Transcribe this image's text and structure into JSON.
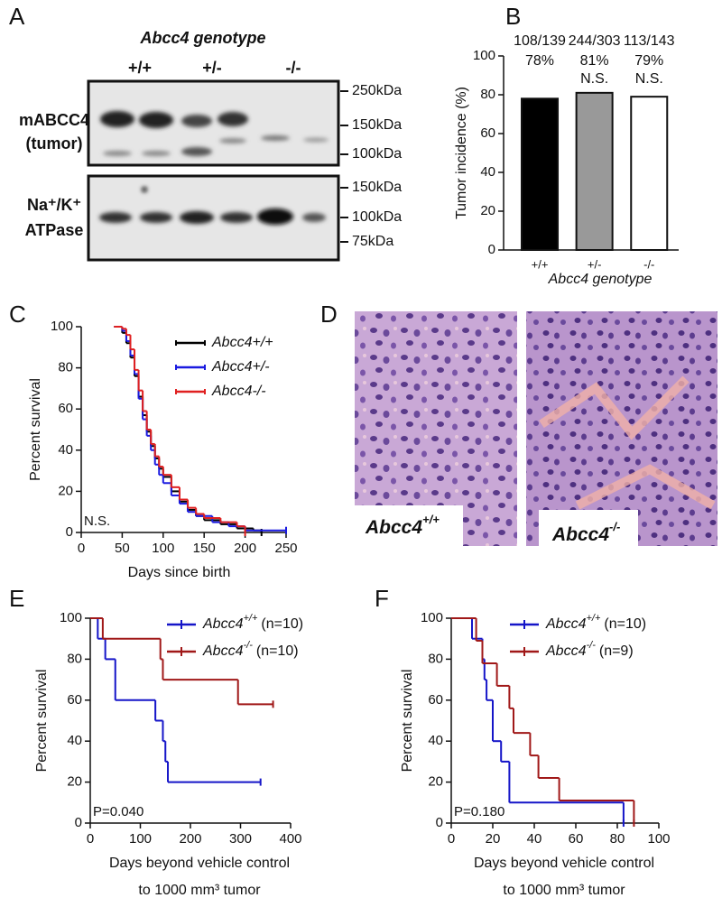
{
  "blot": {
    "panel": "A",
    "title": "Abcc4 genotype",
    "genotypes": [
      "+/+",
      "+/-",
      "-/-"
    ],
    "row_labels": [
      [
        "mABCC4",
        "(tumor)"
      ],
      [
        "Na⁺/K⁺",
        "ATPase"
      ]
    ],
    "markers_top": [
      "250kDa",
      "150kDa",
      "100kDa"
    ],
    "markers_bottom": [
      "150kDa",
      "100kDa",
      "75kDa"
    ]
  },
  "histology": {
    "panel": "D",
    "labels": [
      {
        "gene": "Abcc4",
        "genotype": "+/+"
      },
      {
        "gene": "Abcc4",
        "genotype": "-/-"
      }
    ]
  },
  "chart_data": [
    {
      "type": "bar",
      "panel": "B",
      "categories": [
        "+/+",
        "+/-",
        "-/-"
      ],
      "values": [
        78,
        81,
        79
      ],
      "value_labels": [
        "78%",
        "81%",
        "79%"
      ],
      "fractions": [
        "108/139",
        "244/303",
        "113/143"
      ],
      "significance": [
        null,
        "N.S.",
        "N.S."
      ],
      "colors": [
        "#000000",
        "#999999",
        "#ffffff"
      ],
      "ylabel": "Tumor incidence (%)",
      "xlabel": "Abcc4 genotype",
      "ylim": [
        0,
        100
      ],
      "yticks": [
        0,
        20,
        40,
        60,
        80,
        100
      ]
    },
    {
      "type": "line",
      "step": true,
      "panel": "C",
      "xlabel": [
        "Days since birth"
      ],
      "ylabel": "Percent survival",
      "annotation": "N.S.",
      "xlim": [
        0,
        250
      ],
      "xticks": [
        0,
        50,
        100,
        150,
        200,
        250
      ],
      "ylim": [
        0,
        100
      ],
      "yticks": [
        0,
        20,
        40,
        60,
        80,
        100
      ],
      "series": [
        {
          "name": "Abcc4+/+",
          "color": "#000000",
          "x": [
            40,
            50,
            55,
            60,
            65,
            70,
            75,
            80,
            85,
            90,
            95,
            100,
            110,
            120,
            130,
            140,
            150,
            170,
            190,
            210,
            220
          ],
          "values": [
            100,
            97,
            92,
            85,
            76,
            66,
            57,
            49,
            42,
            36,
            31,
            27,
            20,
            15,
            11,
            8,
            6,
            4,
            2,
            1,
            0
          ]
        },
        {
          "name": "Abcc4+/-",
          "color": "#1a1ae0",
          "x": [
            40,
            50,
            55,
            60,
            65,
            70,
            75,
            80,
            85,
            90,
            95,
            100,
            110,
            120,
            130,
            140,
            160,
            180,
            200,
            250
          ],
          "values": [
            100,
            98,
            93,
            86,
            77,
            65,
            55,
            47,
            40,
            33,
            28,
            24,
            18,
            14,
            10,
            8,
            5,
            3,
            1,
            1
          ]
        },
        {
          "name": "Abcc4-/-",
          "color": "#e02020",
          "x": [
            40,
            50,
            55,
            60,
            65,
            70,
            75,
            80,
            85,
            90,
            95,
            100,
            110,
            120,
            130,
            140,
            150,
            170,
            190,
            200
          ],
          "values": [
            100,
            99,
            96,
            89,
            79,
            69,
            59,
            50,
            43,
            37,
            32,
            28,
            22,
            16,
            12,
            9,
            7,
            5,
            3,
            0
          ]
        }
      ]
    },
    {
      "type": "line",
      "step": true,
      "panel": "E",
      "xlabel": [
        "Days beyond vehicle control",
        "to 1000 mm³ tumor"
      ],
      "ylabel": "Percent survival",
      "annotation": "P=0.040",
      "xlim": [
        0,
        400
      ],
      "xticks": [
        0,
        100,
        200,
        300,
        400
      ],
      "ylim": [
        0,
        100
      ],
      "yticks": [
        0,
        20,
        40,
        60,
        80,
        100
      ],
      "series": [
        {
          "name": "Abcc4",
          "genotype": "+/+",
          "n_label": "(n=10)",
          "color": "#1515c8",
          "x": [
            0,
            15,
            30,
            50,
            130,
            145,
            150,
            155,
            340
          ],
          "values": [
            100,
            90,
            80,
            60,
            50,
            40,
            30,
            20,
            20
          ]
        },
        {
          "name": "Abcc4",
          "genotype": "-/-",
          "n_label": "(n=10)",
          "color": "#a01818",
          "x": [
            0,
            25,
            140,
            145,
            295,
            365
          ],
          "values": [
            100,
            90,
            80,
            70,
            58,
            58
          ]
        }
      ]
    },
    {
      "type": "line",
      "step": true,
      "panel": "F",
      "xlabel": [
        "Days beyond vehicle control",
        "to 1000 mm³ tumor"
      ],
      "ylabel": "Percent survival",
      "annotation": "P=0.180",
      "xlim": [
        0,
        100
      ],
      "xticks": [
        0,
        20,
        40,
        60,
        80,
        100
      ],
      "ylim": [
        0,
        100
      ],
      "yticks": [
        0,
        20,
        40,
        60,
        80,
        100
      ],
      "series": [
        {
          "name": "Abcc4",
          "genotype": "+/+",
          "n_label": "(n=10)",
          "color": "#1515c8",
          "x": [
            0,
            10,
            15,
            16,
            17,
            20,
            24,
            28,
            83
          ],
          "values": [
            100,
            90,
            80,
            70,
            60,
            40,
            30,
            10,
            0
          ]
        },
        {
          "name": "Abcc4",
          "genotype": "-/-",
          "n_label": "(n=9)",
          "color": "#a01818",
          "x": [
            0,
            12,
            15,
            22,
            28,
            30,
            38,
            42,
            52,
            88
          ],
          "values": [
            100,
            89,
            78,
            67,
            56,
            44,
            33,
            22,
            11,
            0
          ]
        }
      ]
    }
  ]
}
